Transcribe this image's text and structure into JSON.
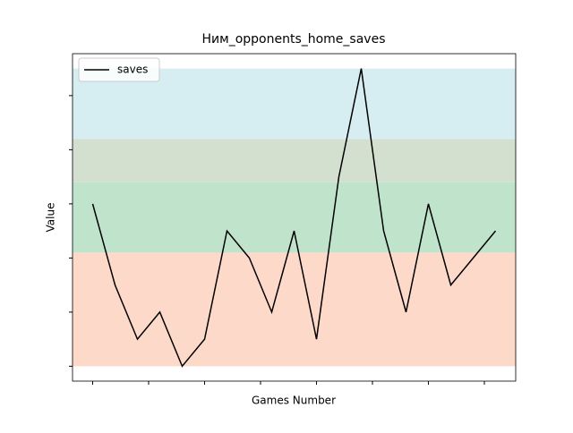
{
  "chart_data": {
    "type": "line",
    "title": "Ним_opponents_home_saves",
    "xlabel": "Games Number",
    "ylabel": "Value",
    "x": [
      0,
      1,
      2,
      3,
      4,
      5,
      6,
      7,
      8,
      9,
      10,
      11,
      12,
      13,
      14,
      15,
      16,
      17,
      18
    ],
    "series": [
      {
        "name": "saves",
        "color": "#000000",
        "values": [
          6,
          3,
          1,
          2,
          0,
          1,
          5,
          4,
          2,
          5,
          1,
          7,
          11,
          5,
          2,
          6,
          3,
          4,
          5
        ]
      }
    ],
    "bands": [
      {
        "from": 0,
        "to": 4.2,
        "color": "#fdd9c9"
      },
      {
        "from": 4.2,
        "to": 6.8,
        "color": "#c0e4cb"
      },
      {
        "from": 6.8,
        "to": 8.4,
        "color": "#d3dfcf"
      },
      {
        "from": 8.4,
        "to": 11,
        "color": "#d6edf2"
      }
    ],
    "xlim": [
      -0.9,
      18.9
    ],
    "xticks": [
      0,
      2.5,
      5,
      7.5,
      10,
      12.5,
      15,
      17.5
    ],
    "ylim": [
      -0.55,
      11.55
    ],
    "yticks": [
      0,
      2,
      4,
      6,
      8,
      10
    ],
    "legend": "upper left"
  }
}
